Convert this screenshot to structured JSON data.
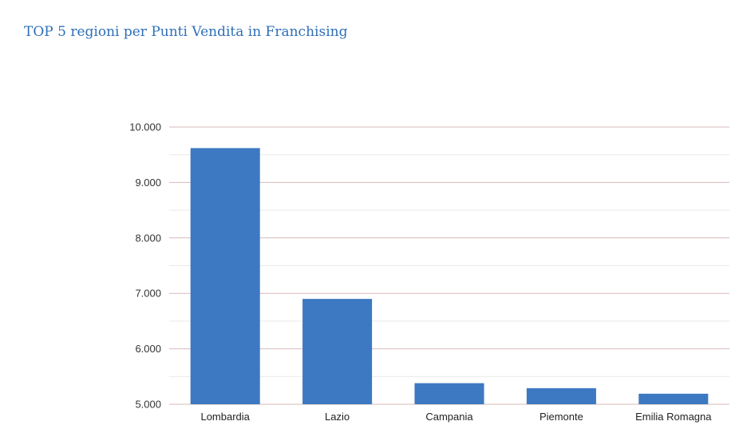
{
  "chart_data": {
    "type": "bar",
    "title": "TOP 5 regioni per Punti Vendita in Franchising",
    "categories": [
      "Lombardia",
      "Lazio",
      "Campania",
      "Piemonte",
      "Emilia Romagna"
    ],
    "values": [
      9620,
      6900,
      5380,
      5290,
      5190
    ],
    "ylim": [
      5000,
      10000
    ],
    "yticks": [
      "5.000",
      "6.000",
      "7.000",
      "8.000",
      "9.000",
      "10.000"
    ],
    "ytick_values": [
      5000,
      6000,
      7000,
      8000,
      9000,
      10000
    ],
    "grid": true,
    "legend": "none",
    "bar_color": "#3d78c2",
    "grid_color": "#d8b9b9",
    "minor_grid_color": "#e9e9e9",
    "title_color": "#2f6fb6"
  }
}
